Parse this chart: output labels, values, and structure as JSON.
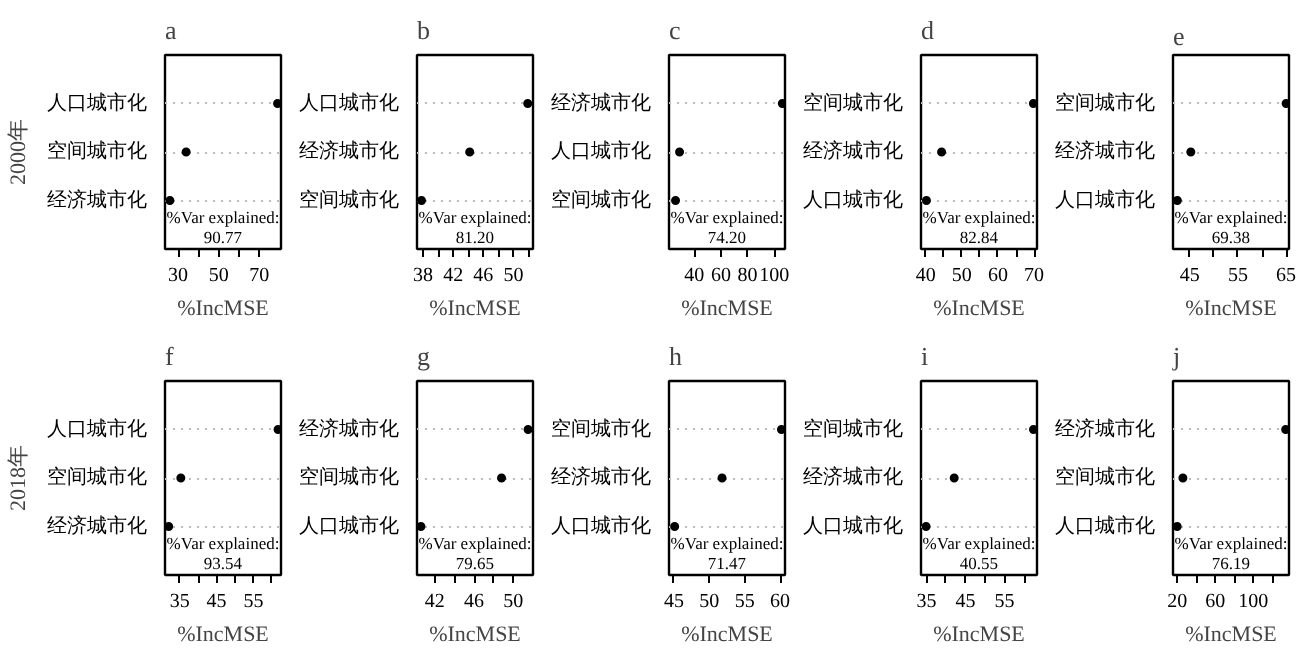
{
  "chart_data": [
    {
      "type": "scatter",
      "orientation": "horizontal",
      "title": "a",
      "ylabel": "2000年",
      "xlabel": "%IncMSE",
      "categories": [
        "人口城市化",
        "空间城市化",
        "经济城市化"
      ],
      "values": [
        79,
        34,
        26
      ],
      "color": "#000000",
      "marker": "circle",
      "grid": "y",
      "xlim": [
        23.6,
        80.7
      ],
      "xticks": [
        30,
        {
          "value": 40,
          "label": null
        },
        50,
        {
          "value": 60,
          "label": null
        },
        70
      ],
      "annotations": [
        "%Var explained:\n90.77"
      ]
    },
    {
      "type": "scatter",
      "orientation": "horizontal",
      "title": "b",
      "xlabel": "%IncMSE",
      "categories": [
        "人口城市化",
        "经济城市化",
        "空间城市化"
      ],
      "values": [
        51.9,
        44.2,
        37.8
      ],
      "color": "#000000",
      "marker": "circle",
      "grid": "y",
      "xlim": [
        37.2,
        52.6
      ],
      "xticks": [
        38,
        {
          "value": 40,
          "label": null
        },
        42,
        {
          "value": 44,
          "label": null
        },
        46,
        {
          "value": 48,
          "label": null
        },
        50,
        {
          "value": 52,
          "label": null
        }
      ],
      "annotations": [
        "%Var explained:\n81.20"
      ]
    },
    {
      "type": "scatter",
      "orientation": "horizontal",
      "title": "c",
      "xlabel": "%IncMSE",
      "categories": [
        "经济城市化",
        "人口城市化",
        "空间城市化"
      ],
      "values": [
        106,
        29,
        26
      ],
      "color": "#000000",
      "marker": "circle",
      "grid": "y",
      "xlim": [
        21.1,
        108
      ],
      "xticks": [
        40,
        60,
        80,
        100
      ],
      "annotations": [
        "%Var explained:\n74.20"
      ]
    },
    {
      "type": "scatter",
      "orientation": "horizontal",
      "title": "d",
      "xlabel": "%IncMSE",
      "categories": [
        "空间城市化",
        "经济城市化",
        "人口城市化"
      ],
      "values": [
        69.8,
        44.4,
        40.2
      ],
      "color": "#000000",
      "marker": "circle",
      "grid": "y",
      "xlim": [
        38.7,
        70.8
      ],
      "xticks": [
        40,
        {
          "value": 45,
          "label": null
        },
        50,
        {
          "value": 55,
          "label": null
        },
        60,
        {
          "value": 65,
          "label": null
        },
        70
      ],
      "annotations": [
        "%Var explained:\n82.84"
      ]
    },
    {
      "type": "scatter",
      "orientation": "horizontal",
      "title": "e",
      "xlabel": "%IncMSE",
      "categories": [
        "空间城市化",
        "经济城市化",
        "人口城市化"
      ],
      "values": [
        65.0,
        45.2,
        42.4
      ],
      "color": "#000000",
      "marker": "circle",
      "grid": "y",
      "xlim": [
        41.5,
        65.6
      ],
      "xticks": [
        45,
        {
          "value": 50,
          "label": null
        },
        55,
        {
          "value": 60,
          "label": null
        },
        65
      ],
      "annotations": [
        "%Var explained:\n69.38"
      ]
    },
    {
      "type": "scatter",
      "orientation": "horizontal",
      "title": "f",
      "ylabel": "2018年",
      "xlabel": "%IncMSE",
      "categories": [
        "人口城市化",
        "空间城市化",
        "经济城市化"
      ],
      "values": [
        61.7,
        35.3,
        32.0
      ],
      "color": "#000000",
      "marker": "circle",
      "grid": "y",
      "xlim": [
        31.0,
        62.5
      ],
      "xticks": [
        35,
        {
          "value": 40,
          "label": null
        },
        45,
        {
          "value": 50,
          "label": null
        },
        55,
        {
          "value": 60,
          "label": null
        }
      ],
      "annotations": [
        "%Var explained:\n93.54"
      ]
    },
    {
      "type": "scatter",
      "orientation": "horizontal",
      "title": "g",
      "xlabel": "%IncMSE",
      "categories": [
        "经济城市化",
        "空间城市化",
        "人口城市化"
      ],
      "values": [
        51.5,
        48.8,
        40.6
      ],
      "color": "#000000",
      "marker": "circle",
      "grid": "y",
      "xlim": [
        40.2,
        52.0
      ],
      "xticks": [
        42,
        {
          "value": 44,
          "label": null
        },
        46,
        {
          "value": 48,
          "label": null
        },
        50
      ],
      "annotations": [
        "%Var explained:\n79.65"
      ]
    },
    {
      "type": "scatter",
      "orientation": "horizontal",
      "title": "h",
      "xlabel": "%IncMSE",
      "categories": [
        "空间城市化",
        "经济城市化",
        "人口城市化"
      ],
      "values": [
        60.2,
        51.8,
        45.1
      ],
      "color": "#000000",
      "marker": "circle",
      "grid": "y",
      "xlim": [
        44.3,
        60.7
      ],
      "xticks": [
        45,
        50,
        55,
        60
      ],
      "annotations": [
        "%Var explained:\n71.47"
      ]
    },
    {
      "type": "scatter",
      "orientation": "horizontal",
      "title": "i",
      "xlabel": "%IncMSE",
      "categories": [
        "空间城市化",
        "经济城市化",
        "人口城市化"
      ],
      "values": [
        62.4,
        42.1,
        34.9
      ],
      "color": "#000000",
      "marker": "circle",
      "grid": "y",
      "xlim": [
        33.6,
        63.3
      ],
      "xticks": [
        35,
        {
          "value": 40,
          "label": null
        },
        45,
        {
          "value": 50,
          "label": null
        },
        55,
        {
          "value": 60,
          "label": null
        }
      ],
      "annotations": [
        "%Var explained:\n40.55"
      ]
    },
    {
      "type": "scatter",
      "orientation": "horizontal",
      "title": "j",
      "xlabel": "%IncMSE",
      "categories": [
        "经济城市化",
        "空间城市化",
        "人口城市化"
      ],
      "values": [
        134,
        26,
        20
      ],
      "color": "#000000",
      "marker": "circle",
      "grid": "y",
      "xlim": [
        15.6,
        137.5
      ],
      "xticks": [
        20,
        {
          "value": 40,
          "label": null
        },
        60,
        {
          "value": 80,
          "label": null
        },
        100,
        {
          "value": 120,
          "label": null
        }
      ],
      "annotations": [
        "%Var explained:\n76.19"
      ]
    }
  ]
}
